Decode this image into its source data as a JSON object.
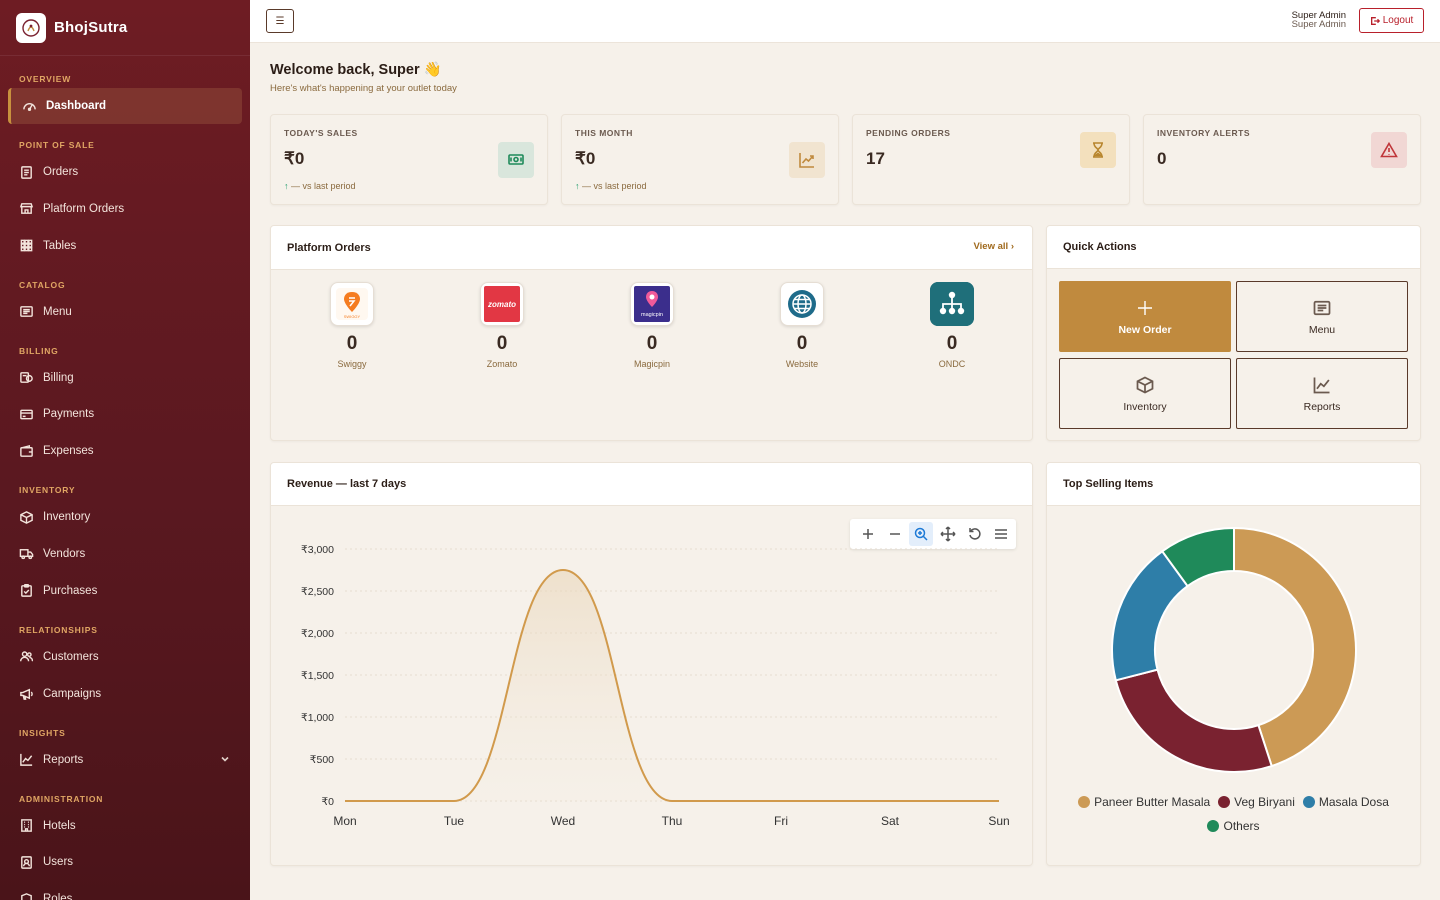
{
  "brand": {
    "name": "BhojSutra"
  },
  "sidebar": {
    "sections": [
      {
        "title": "OVERVIEW",
        "items": [
          {
            "label": "Dashboard",
            "icon": "gauge-icon",
            "active": true
          }
        ]
      },
      {
        "title": "POINT OF SALE",
        "items": [
          {
            "label": "Orders",
            "icon": "receipt-icon"
          },
          {
            "label": "Platform Orders",
            "icon": "store-icon"
          },
          {
            "label": "Tables",
            "icon": "grid-icon"
          }
        ]
      },
      {
        "title": "CATALOG",
        "items": [
          {
            "label": "Menu",
            "icon": "menu-card-icon"
          }
        ]
      },
      {
        "title": "BILLING",
        "items": [
          {
            "label": "Billing",
            "icon": "billing-icon"
          },
          {
            "label": "Payments",
            "icon": "credit-card-icon"
          },
          {
            "label": "Expenses",
            "icon": "wallet-icon"
          }
        ]
      },
      {
        "title": "INVENTORY",
        "items": [
          {
            "label": "Inventory",
            "icon": "box-icon"
          },
          {
            "label": "Vendors",
            "icon": "truck-icon"
          },
          {
            "label": "Purchases",
            "icon": "clipboard-icon"
          }
        ]
      },
      {
        "title": "RELATIONSHIPS",
        "items": [
          {
            "label": "Customers",
            "icon": "users-icon"
          },
          {
            "label": "Campaigns",
            "icon": "megaphone-icon"
          }
        ]
      },
      {
        "title": "INSIGHTS",
        "items": [
          {
            "label": "Reports",
            "icon": "chart-line-icon",
            "expandable": true
          }
        ]
      },
      {
        "title": "ADMINISTRATION",
        "items": [
          {
            "label": "Hotels",
            "icon": "building-icon"
          },
          {
            "label": "Users",
            "icon": "id-badge-icon"
          },
          {
            "label": "Roles",
            "icon": "shield-icon"
          }
        ]
      }
    ]
  },
  "topbar": {
    "menu_toggle": "☰",
    "user_name": "Super Admin",
    "user_role": "Super Admin",
    "logout_label": "Logout"
  },
  "welcome": {
    "title": "Welcome back, Super 👋",
    "subtitle": "Here's what's happening at your outlet today"
  },
  "stats": [
    {
      "label": "TODAY'S SALES",
      "value": "₹0",
      "trend_arrow": "↑",
      "trend_text": "— vs last period",
      "icon": "cash-icon",
      "icon_bg": "#d9e6dc",
      "icon_color": "#1e8a5a"
    },
    {
      "label": "THIS MONTH",
      "value": "₹0",
      "trend_arrow": "↑",
      "trend_text": "— vs last period",
      "icon": "trend-up-icon",
      "icon_bg": "#f1e4d0",
      "icon_color": "#c08a3e"
    },
    {
      "label": "PENDING ORDERS",
      "value": "17",
      "icon": "hourglass-icon",
      "icon_bg": "#f3e0bd",
      "icon_color": "#b8862e"
    },
    {
      "label": "INVENTORY ALERTS",
      "value": "0",
      "icon": "warning-icon",
      "icon_bg": "#f1d7d4",
      "icon_color": "#c0363a"
    }
  ],
  "platform_orders": {
    "title": "Platform Orders",
    "view_all": "View all",
    "platforms": [
      {
        "name": "Swiggy",
        "count": "0",
        "logo_text": "SWIGGY",
        "color": "#f57c20"
      },
      {
        "name": "Zomato",
        "count": "0",
        "logo_text": "zomato",
        "color": "#e23744"
      },
      {
        "name": "Magicpin",
        "count": "0",
        "logo_text": "magicpin",
        "color": "#3b2e8c"
      },
      {
        "name": "Website",
        "count": "0",
        "color": "#1e6b8a"
      },
      {
        "name": "ONDC",
        "count": "0",
        "color": "#1f6f7a"
      }
    ]
  },
  "quick_actions": {
    "title": "Quick Actions",
    "items": [
      {
        "label": "New Order",
        "icon": "plus-icon"
      },
      {
        "label": "Menu",
        "icon": "menu-card-icon"
      },
      {
        "label": "Inventory",
        "icon": "box-icon"
      },
      {
        "label": "Reports",
        "icon": "chart-line-icon"
      }
    ]
  },
  "revenue": {
    "title": "Revenue — last 7 days"
  },
  "top_selling": {
    "title": "Top Selling Items"
  },
  "chart_data": [
    {
      "type": "area",
      "title": "Revenue — last 7 days",
      "categories": [
        "Mon",
        "Tue",
        "Wed",
        "Thu",
        "Fri",
        "Sat",
        "Sun"
      ],
      "values": [
        0,
        0,
        2750,
        0,
        0,
        0,
        0
      ],
      "y_ticks": [
        "₹0",
        "₹500",
        "₹1,000",
        "₹1,500",
        "₹2,000",
        "₹2,500",
        "₹3,000"
      ],
      "ylim": [
        0,
        3000
      ],
      "color": "#d19a4c",
      "grid": true
    },
    {
      "type": "pie",
      "title": "Top Selling Items",
      "donut": true,
      "labels": [
        "Paneer Butter Masala",
        "Veg Biryani",
        "Masala Dosa",
        "Others"
      ],
      "values": [
        45,
        26,
        19,
        10
      ],
      "colors": [
        "#cc9a55",
        "#7a2230",
        "#2e7ea8",
        "#1f8a5a"
      ],
      "legend": "bottom"
    }
  ]
}
